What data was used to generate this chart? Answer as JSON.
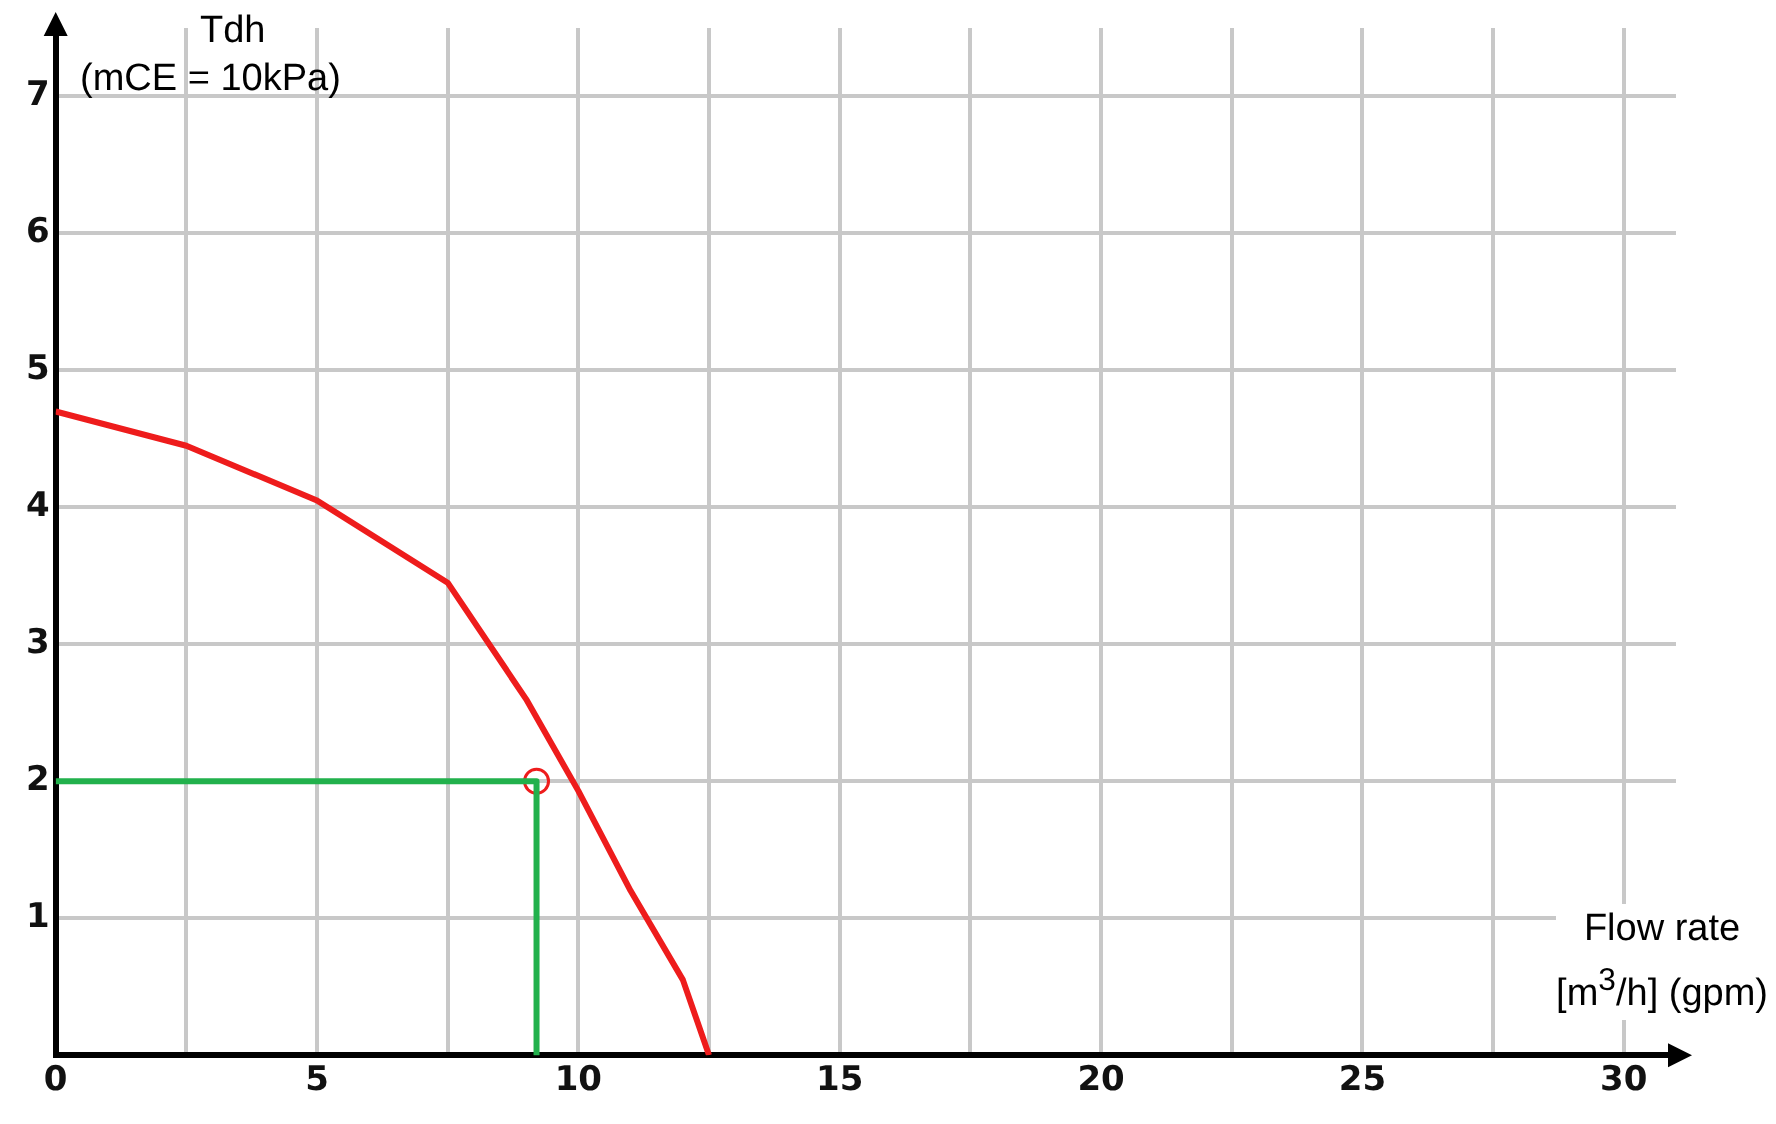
{
  "chart_data": {
    "type": "line",
    "xlabel": "Flow rate [m$^{3}$/h] (gpm)",
    "ylabel": "Tdh (mCE = 10kPa)",
    "xlim": [
      0,
      31
    ],
    "ylim": [
      0,
      7.5
    ],
    "xticks": [
      0,
      {
        "value": 2.5,
        "label": null
      },
      5,
      {
        "value": 7.5,
        "label": null
      },
      10,
      {
        "value": 12.5,
        "label": null
      },
      15,
      {
        "value": 17.5,
        "label": null
      },
      20,
      {
        "value": 22.5,
        "label": null
      },
      25,
      {
        "value": 27.5,
        "label": null
      },
      30
    ],
    "yticks": [
      1,
      2,
      3,
      4,
      5,
      6,
      7
    ],
    "grid": true,
    "series": [
      {
        "color": "#ee1c1c",
        "marker": "none",
        "x": [
          0,
          2.5,
          5,
          7.5,
          9,
          10,
          11,
          12,
          12.5
        ],
        "values": [
          4.7,
          4.45,
          4.05,
          3.45,
          2.6,
          1.93,
          1.2,
          0.55,
          0
        ]
      },
      {
        "type": "line",
        "color": "#22b14c",
        "marker": "none",
        "x": [
          0,
          9.2,
          9.2
        ],
        "values": [
          2,
          2,
          0
        ]
      },
      {
        "type": "scatter",
        "color": "#ee1c1c",
        "marker": "circle",
        "x": [
          9.2
        ],
        "values": [
          2
        ]
      }
    ]
  }
}
